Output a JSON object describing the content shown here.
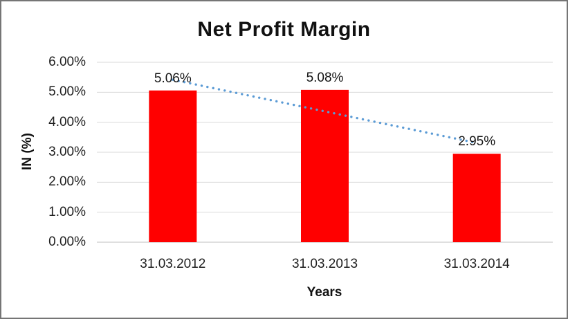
{
  "chart_data": {
    "type": "bar",
    "title": "Net Profit Margin",
    "xlabel": "Years",
    "ylabel": "IN (%)",
    "categories": [
      "31.03.2012",
      "31.03.2013",
      "31.03.2014"
    ],
    "values": [
      5.06,
      5.08,
      2.95
    ],
    "data_labels": [
      "5.06%",
      "5.08%",
      "2.95%"
    ],
    "yticks": [
      {
        "value": 0,
        "label": "0.00%"
      },
      {
        "value": 1,
        "label": "1.00%"
      },
      {
        "value": 2,
        "label": "2.00%"
      },
      {
        "value": 3,
        "label": "3.00%"
      },
      {
        "value": 4,
        "label": "4.00%"
      },
      {
        "value": 5,
        "label": "5.00%"
      },
      {
        "value": 6,
        "label": "6.00%"
      }
    ],
    "ylim": [
      0,
      6
    ],
    "legend": "none",
    "gridlines": true,
    "bar_color": "#FF0000",
    "gridline_color": "#D9D9D9",
    "axis_line_color": "#BFBFBF",
    "text_color": "#1A1A1A",
    "frame_color": "#757575",
    "trendline": {
      "type": "linear",
      "style": "dotted",
      "color": "#5B9BD5"
    }
  }
}
